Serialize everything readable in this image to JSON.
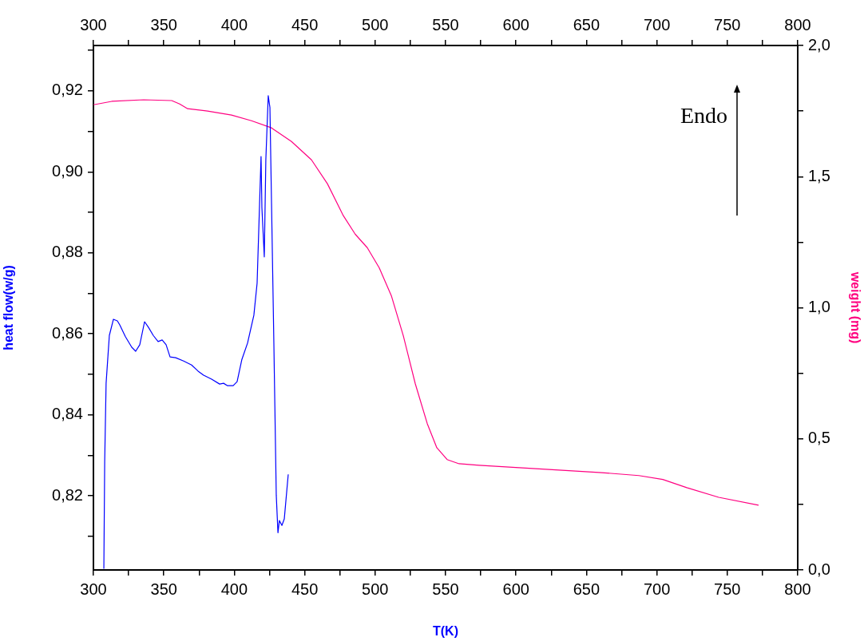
{
  "chart_data": {
    "type": "line",
    "xlabel": "T(K)",
    "ylabel": "heat flow(w/g)",
    "y2label": "weight (mg)",
    "annotations": [
      "Endo"
    ],
    "xlim": [
      300,
      800
    ],
    "xticks": [
      300,
      {
        "value": 325,
        "label": null
      },
      350,
      {
        "value": 375,
        "label": null
      },
      400,
      {
        "value": 425,
        "label": null
      },
      450,
      {
        "value": 475,
        "label": null
      },
      500,
      {
        "value": 525,
        "label": null
      },
      550,
      {
        "value": 575,
        "label": null
      },
      600,
      {
        "value": 625,
        "label": null
      },
      650,
      {
        "value": 675,
        "label": null
      },
      700,
      {
        "value": 725,
        "label": null
      },
      750,
      {
        "value": 775,
        "label": null
      },
      800
    ],
    "x2lim": [
      300,
      800
    ],
    "x2ticks": [
      300,
      {
        "value": 325,
        "label": null
      },
      350,
      {
        "value": 375,
        "label": null
      },
      400,
      {
        "value": 425,
        "label": null
      },
      450,
      {
        "value": 475,
        "label": null
      },
      500,
      {
        "value": 525,
        "label": null
      },
      550,
      {
        "value": 575,
        "label": null
      },
      600,
      {
        "value": 625,
        "label": null
      },
      650,
      {
        "value": 675,
        "label": null
      },
      700,
      {
        "value": 725,
        "label": null
      },
      750,
      {
        "value": 775,
        "label": null
      },
      800
    ],
    "ylim": [
      0.8017,
      0.9312
    ],
    "yticks": [
      {
        "value": 0.81,
        "label": null
      },
      {
        "value": 0.82,
        "label": "0,82"
      },
      {
        "value": 0.83,
        "label": null
      },
      {
        "value": 0.84,
        "label": "0,84"
      },
      {
        "value": 0.85,
        "label": null
      },
      {
        "value": 0.86,
        "label": "0,86"
      },
      {
        "value": 0.87,
        "label": null
      },
      {
        "value": 0.88,
        "label": "0,88"
      },
      {
        "value": 0.89,
        "label": null
      },
      {
        "value": 0.9,
        "label": "0,90"
      },
      {
        "value": 0.91,
        "label": null
      },
      {
        "value": 0.92,
        "label": "0,92"
      },
      {
        "value": 0.93,
        "label": null
      }
    ],
    "y2lim": [
      0,
      2
    ],
    "y2ticks": [
      {
        "value": 0,
        "label": "0,0"
      },
      {
        "value": 0.25,
        "label": null
      },
      {
        "value": 0.5,
        "label": "0,5"
      },
      {
        "value": 0.75,
        "label": null
      },
      {
        "value": 1,
        "label": "1,0"
      },
      {
        "value": 1.25,
        "label": null
      },
      {
        "value": 1.5,
        "label": "1,5"
      },
      {
        "value": 1.75,
        "label": null
      },
      {
        "value": 2,
        "label": "2,0"
      }
    ],
    "grid": false,
    "legend": false,
    "marker": "none",
    "line_style": "solid",
    "series": [
      {
        "color": "#0000ff",
        "x": [
          307.4,
          308,
          309,
          311.3,
          314.2,
          317,
          318.7,
          322.7,
          327.2,
          330,
          332.9,
          336.3,
          339.1,
          342.5,
          345.9,
          348.8,
          351.6,
          354.4,
          358.4,
          364,
          369.7,
          374.3,
          378.2,
          383.9,
          389.6,
          392.4,
          395.2,
          399.2,
          402,
          405.4,
          409.4,
          413.9,
          416.2,
          419,
          419.6,
          421.3,
          422.4,
          424.1,
          425.3,
          428.1,
          429.8,
          431,
          432,
          433.8,
          435.5,
          438.3
        ],
        "values": [
          0.802,
          0.8285,
          0.8478,
          0.8596,
          0.8636,
          0.8632,
          0.8622,
          0.8593,
          0.8567,
          0.8557,
          0.8573,
          0.863,
          0.8616,
          0.8596,
          0.8581,
          0.8585,
          0.8573,
          0.8543,
          0.8541,
          0.8533,
          0.8523,
          0.8508,
          0.8498,
          0.8488,
          0.8476,
          0.8478,
          0.8472,
          0.8472,
          0.8482,
          0.8537,
          0.8577,
          0.8646,
          0.8725,
          0.9038,
          0.8912,
          0.879,
          0.903,
          0.9188,
          0.9159,
          0.8577,
          0.8202,
          0.8109,
          0.8139,
          0.8127,
          0.8143,
          0.8253
        ]
      },
      {
        "color": "#ff0080",
        "axis": "y2",
        "x": [
          300,
          313,
          335.7,
          355.6,
          361.2,
          366.9,
          381,
          398,
          412.2,
          426.4,
          440.6,
          454.8,
          466.1,
          477.4,
          485.9,
          494.4,
          502.9,
          511.5,
          520,
          528.5,
          537,
          543.8,
          551.1,
          559.6,
          573.8,
          602.2,
          630.5,
          658.8,
          687.2,
          704.2,
          721.2,
          743.9,
          772.2
        ],
        "values": [
          1.774,
          1.787,
          1.793,
          1.79,
          1.777,
          1.759,
          1.75,
          1.735,
          1.713,
          1.686,
          1.634,
          1.564,
          1.473,
          1.351,
          1.28,
          1.229,
          1.152,
          1.046,
          0.893,
          0.71,
          0.558,
          0.466,
          0.421,
          0.405,
          0.399,
          0.39,
          0.381,
          0.372,
          0.36,
          0.345,
          0.314,
          0.277,
          0.247
        ]
      }
    ]
  }
}
